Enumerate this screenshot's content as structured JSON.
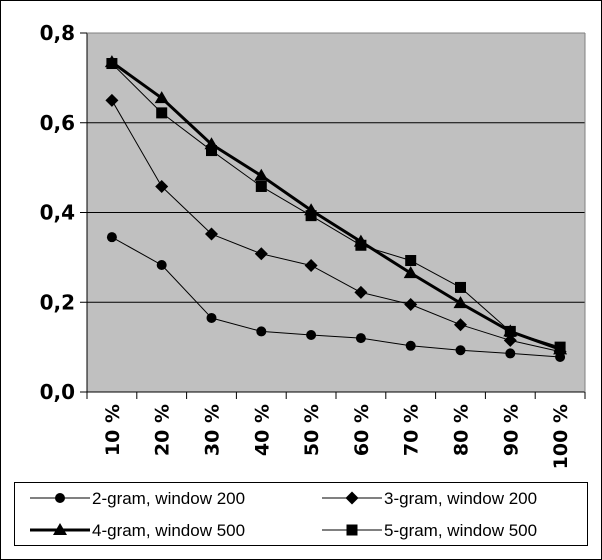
{
  "chart_data": {
    "type": "line",
    "categories": [
      "10 %",
      "20 %",
      "30 %",
      "40 %",
      "50 %",
      "60 %",
      "70 %",
      "80 %",
      "90 %",
      "100 %"
    ],
    "ylim": [
      0,
      0.8
    ],
    "yticks": [
      "0,0",
      "0,2",
      "0,4",
      "0,6",
      "0,8"
    ],
    "grid": true,
    "legend_position": "bottom",
    "series": [
      {
        "name": "2-gram, window 200",
        "marker": "circle",
        "values": [
          0.345,
          0.283,
          0.165,
          0.135,
          0.127,
          0.12,
          0.103,
          0.093,
          0.086,
          0.078
        ]
      },
      {
        "name": "3-gram, window 200",
        "marker": "diamond",
        "values": [
          0.65,
          0.458,
          0.352,
          0.308,
          0.282,
          0.222,
          0.195,
          0.15,
          0.115,
          0.09
        ]
      },
      {
        "name": "4-gram, window 500",
        "marker": "triangle",
        "values": [
          0.735,
          0.655,
          0.552,
          0.482,
          0.405,
          0.335,
          0.265,
          0.198,
          0.135,
          0.095
        ]
      },
      {
        "name": "5-gram, window 500",
        "marker": "square",
        "values": [
          0.732,
          0.622,
          0.538,
          0.458,
          0.393,
          0.327,
          0.293,
          0.233,
          0.135,
          0.1
        ]
      }
    ]
  }
}
